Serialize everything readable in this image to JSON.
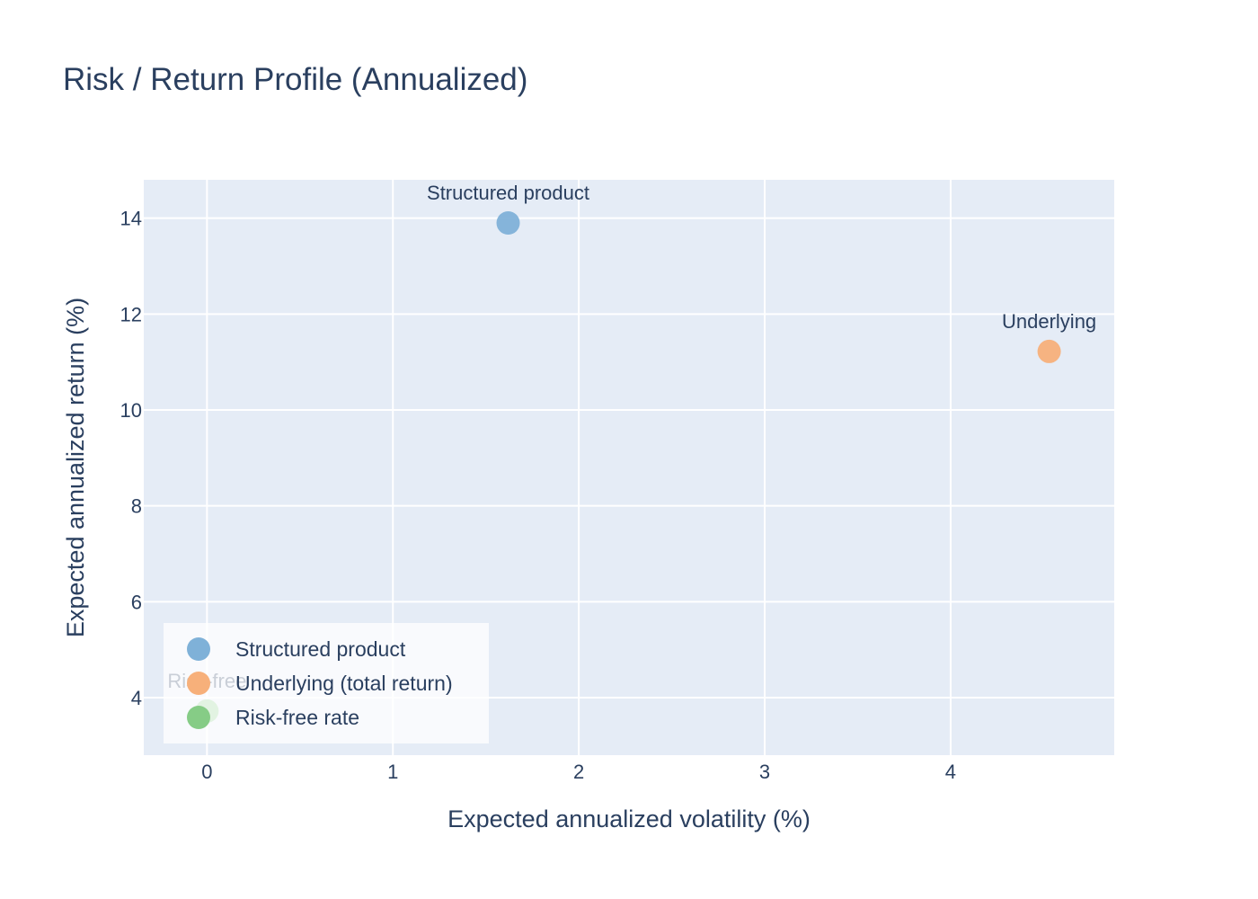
{
  "chart_data": {
    "type": "scatter",
    "title": "Risk / Return Profile (Annualized)",
    "xlabel": "Expected annualized volatility (%)",
    "ylabel": "Expected annualized return (%)",
    "xlim": [
      -0.34,
      4.88
    ],
    "ylim": [
      2.8,
      14.8
    ],
    "x_ticks": [
      0,
      1,
      2,
      3,
      4
    ],
    "y_ticks": [
      4,
      6,
      8,
      10,
      12,
      14
    ],
    "grid": true,
    "legend_position": "bottom-left",
    "series": [
      {
        "name": "Structured product",
        "color": "#7fb1d8",
        "points": [
          {
            "x": 1.62,
            "y": 13.9,
            "label": "Structured product"
          }
        ]
      },
      {
        "name": "Underlying (total return)",
        "color": "#f7b07a",
        "points": [
          {
            "x": 4.53,
            "y": 11.22,
            "label": "Underlying"
          }
        ]
      },
      {
        "name": "Risk-free rate",
        "color": "#86cc86",
        "points": [
          {
            "x": 0.0,
            "y": 3.72,
            "label": "Risk-free"
          }
        ]
      }
    ]
  },
  "colors": {
    "plot_background": "#e5ecf6",
    "text": "#2a3f5f",
    "grid": "#ffffff"
  }
}
